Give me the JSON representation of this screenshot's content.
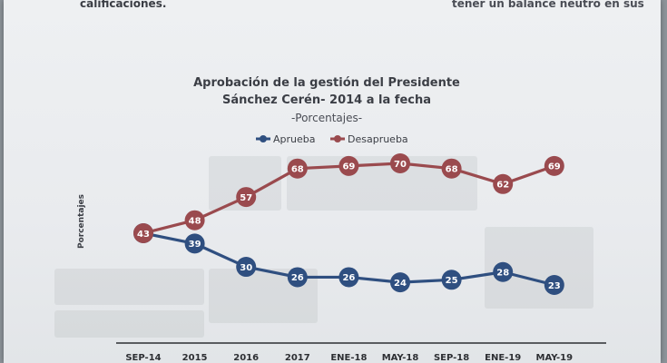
{
  "page": {
    "body_text_left": "calificaciones.",
    "body_text_right": "tener un balance neutro en sus"
  },
  "chart_data": {
    "type": "line",
    "title_line1": "Aprobación de la gestión del Presidente",
    "title_line2": "Sánchez Cerén- 2014 a la fecha",
    "subtitle": "-Porcentajes-",
    "ylabel": "Porcentajes",
    "xlabel": "",
    "categories": [
      "SEP-14",
      "2015",
      "2016",
      "2017",
      "ENE-18",
      "MAY-18",
      "SEP-18",
      "ENE-19",
      "MAY-19"
    ],
    "series": [
      {
        "name": "Aprueba",
        "color": "#2f4f80",
        "values": [
          43,
          39,
          30,
          26,
          26,
          24,
          25,
          28,
          23
        ]
      },
      {
        "name": "Desaprueba",
        "color": "#9a4a4e",
        "values": [
          43,
          48,
          57,
          68,
          69,
          70,
          68,
          62,
          69
        ]
      }
    ],
    "legend_position": "top",
    "grid": false
  }
}
